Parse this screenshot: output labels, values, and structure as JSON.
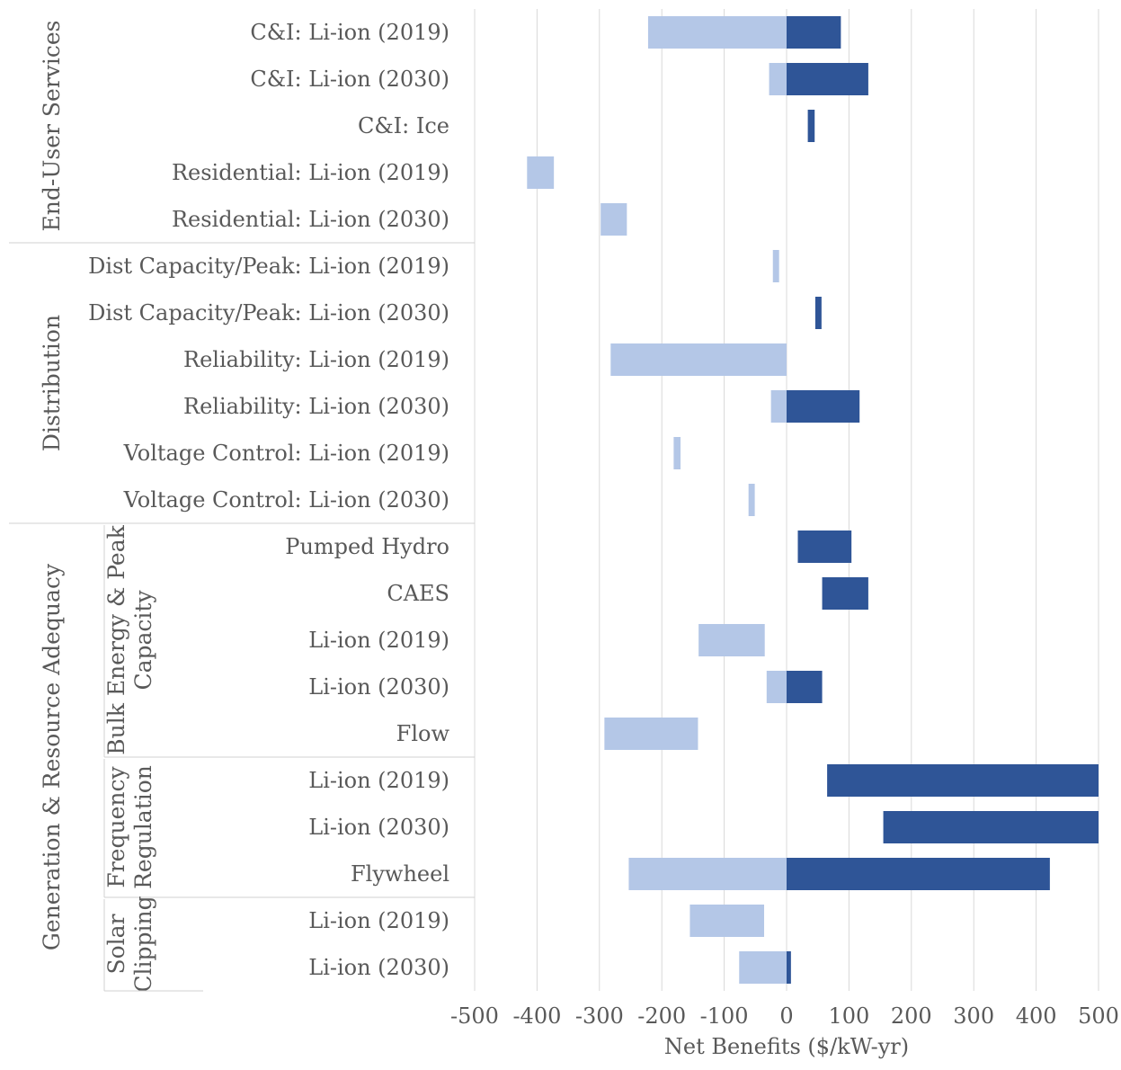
{
  "chart_data": {
    "type": "bar",
    "subtype": "floating-range",
    "xlabel": "Net Benefits ($/kW-yr)",
    "xlim": [
      -500,
      500
    ],
    "xticks": [
      -500,
      -400,
      -300,
      -200,
      -100,
      0,
      100,
      200,
      300,
      400,
      500
    ],
    "grid": "vertical",
    "legend": "none",
    "colors": {
      "negative_range": "#B4C7E7",
      "positive_range": "#2F5597",
      "grid": "#D9D9D9",
      "text": "#595959"
    },
    "categories": [
      "C&I: Li-ion (2019)",
      "C&I: Li-ion (2030)",
      "C&I: Ice",
      "Residential: Li-ion (2019)",
      "Residential: Li-ion (2030)",
      "Dist Capacity/Peak: Li-ion (2019)",
      "Dist Capacity/Peak: Li-ion (2030)",
      "Reliability: Li-ion (2019)",
      "Reliability: Li-ion (2030)",
      "Voltage Control: Li-ion (2019)",
      "Voltage Control: Li-ion (2030)",
      "Pumped Hydro",
      "CAES",
      "Li-ion (2019)",
      "Li-ion (2030)",
      "Flow",
      "Li-ion (2019)",
      "Li-ion (2030)",
      "Flywheel",
      "Li-ion (2019)",
      "Li-ion (2030)"
    ],
    "ranges": [
      [
        -222,
        87
      ],
      [
        -28,
        131
      ],
      [
        34,
        45
      ],
      [
        -416,
        -373
      ],
      [
        -298,
        -256
      ],
      [
        -22,
        -12
      ],
      [
        46,
        56
      ],
      [
        -282,
        0
      ],
      [
        -25,
        117
      ],
      [
        -181,
        -170
      ],
      [
        -61,
        -51
      ],
      [
        18,
        104
      ],
      [
        57,
        131
      ],
      [
        -141,
        -35
      ],
      [
        -32,
        57
      ],
      [
        -292,
        -142
      ],
      [
        65,
        500
      ],
      [
        155,
        500
      ],
      [
        -253,
        422
      ],
      [
        -155,
        -36
      ],
      [
        -76,
        7
      ]
    ],
    "groups": [
      {
        "label": "End-User Services",
        "rows": [
          0,
          4
        ],
        "subgroups": []
      },
      {
        "label": "Distribution",
        "rows": [
          5,
          10
        ],
        "subgroups": []
      },
      {
        "label": "Generation & Resource Adequacy",
        "rows": [
          11,
          20
        ],
        "subgroups": [
          {
            "lines": [
              "Bulk Energy & Peak",
              "Capacity"
            ],
            "rows": [
              11,
              15
            ]
          },
          {
            "lines": [
              "Frequency",
              "Regulation"
            ],
            "rows": [
              16,
              18
            ]
          },
          {
            "lines": [
              "Solar",
              "Clipping"
            ],
            "rows": [
              19,
              20
            ]
          }
        ]
      }
    ]
  }
}
